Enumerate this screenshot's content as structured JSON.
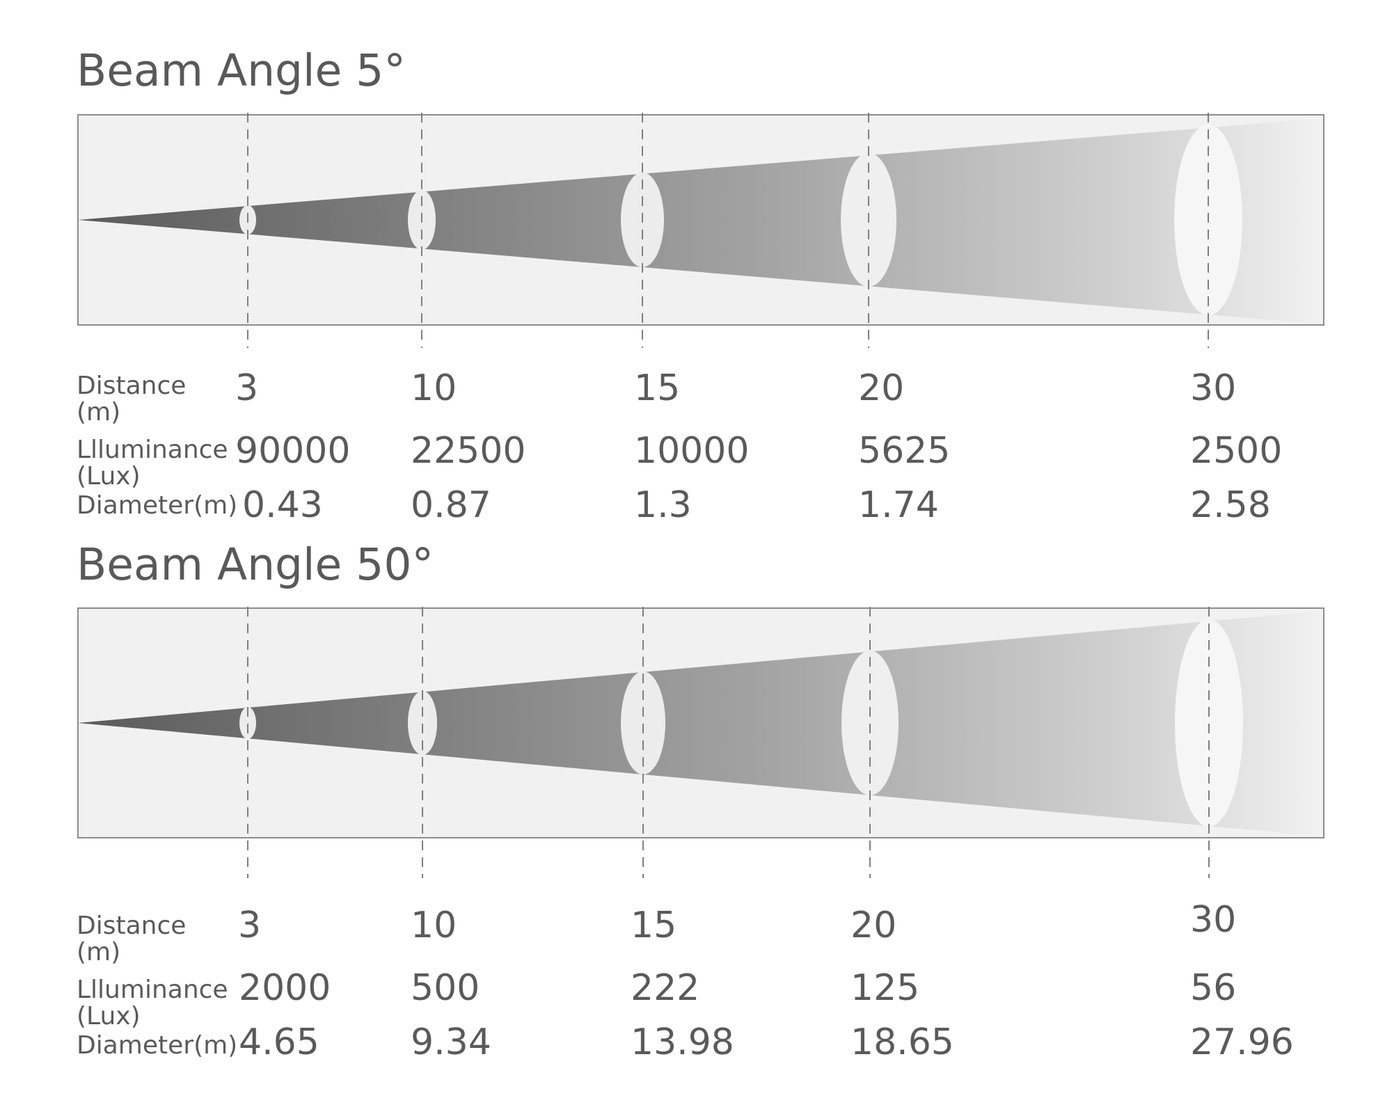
{
  "sections": [
    {
      "title": "Beam Angle 5°",
      "distance_label_1": "Distance",
      "distance_label_2": "(m)",
      "illuminance_label_1": "Llluminance",
      "illuminance_label_2": "(Lux)",
      "diameter_label": "Diameter(m)",
      "distance": [
        "3",
        "10",
        "15",
        "20",
        "30"
      ],
      "illuminance": [
        "90000",
        "22500",
        "10000",
        "5625",
        "2500"
      ],
      "diameter": [
        "0.43",
        "0.87",
        "1.3",
        "1.74",
        "2.58"
      ]
    },
    {
      "title": "Beam Angle 50°",
      "distance_label_1": "Distance",
      "distance_label_2": "(m)",
      "illuminance_label_1": "Llluminance",
      "illuminance_label_2": "(Lux)",
      "diameter_label": "Diameter(m)",
      "distance": [
        "3",
        "10",
        "15",
        "20",
        "30"
      ],
      "illuminance": [
        "2000",
        "500",
        "222",
        "125",
        "56"
      ],
      "diameter": [
        "4.65",
        "9.34",
        "13.98",
        "18.65",
        "27.96"
      ]
    }
  ],
  "colors": {
    "panel_fill": "#f1f1f1",
    "panel_border": "#8c8c8c",
    "beam_start": "#5b5b5b",
    "beam_end": "#f1f1f1",
    "guide_line": "#7f7f7f",
    "text": "#595959"
  }
}
